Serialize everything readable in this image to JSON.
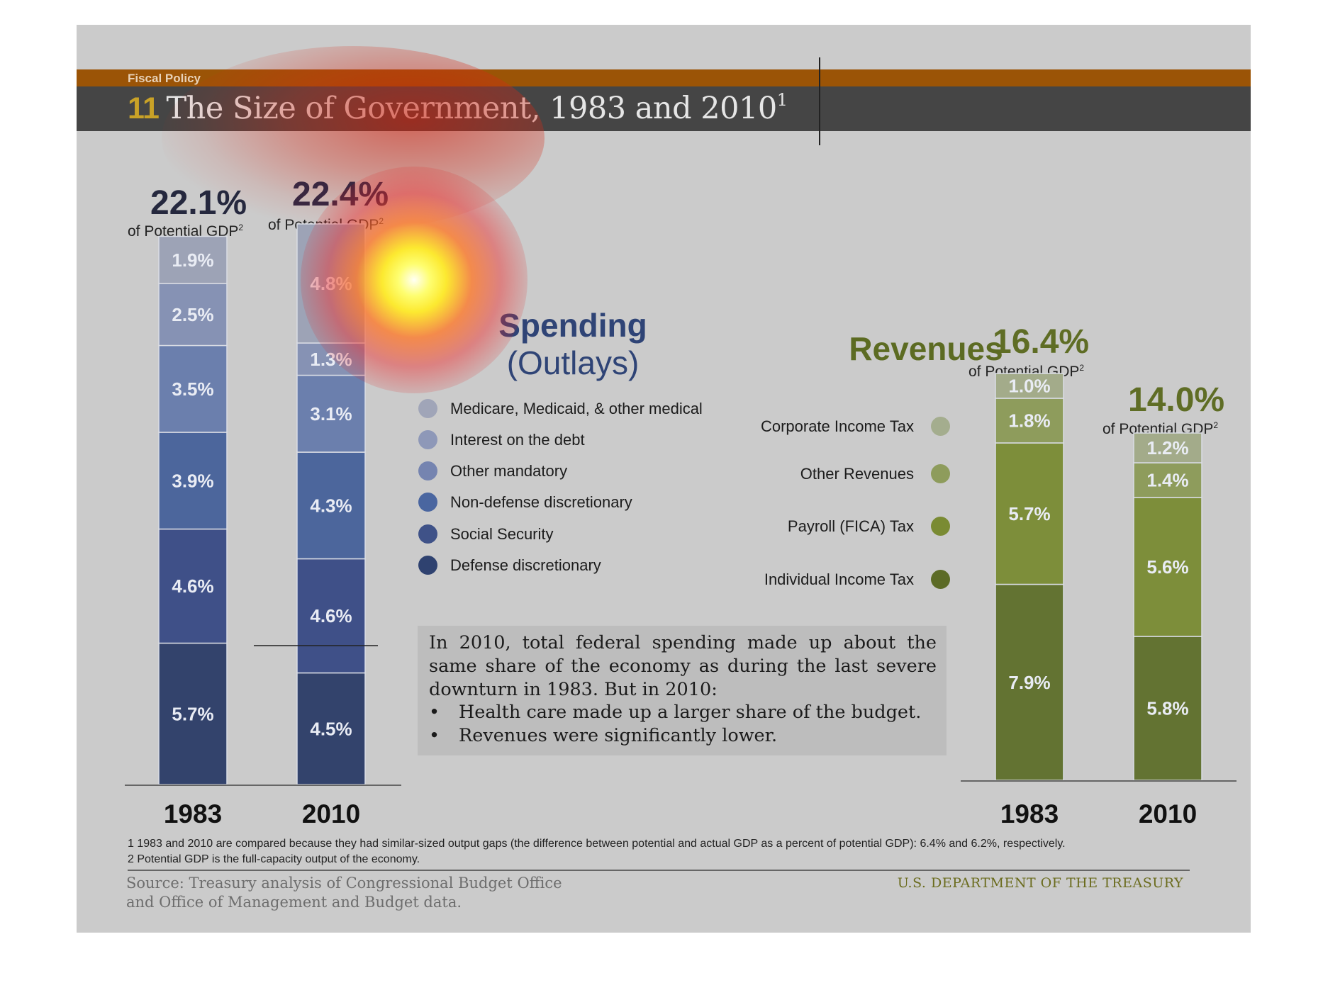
{
  "header": {
    "category": "Fiscal Policy",
    "number": "11",
    "title": "The Size of Government, 1983 and 2010",
    "title_footnote": "1"
  },
  "spending": {
    "heading_line1": "Spending",
    "heading_line2": "(Outlays)",
    "totals": [
      {
        "year": "1983",
        "value": "22.1%",
        "label": "of Potential GDP",
        "footnote": "2"
      },
      {
        "year": "2010",
        "value": "22.4%",
        "label": "of Potential GDP",
        "footnote": "2"
      }
    ],
    "legend": [
      {
        "label": "Medicare, Medicaid, & other medical",
        "color": "#a0a5b8"
      },
      {
        "label": "Interest on the debt",
        "color": "#8e98b8"
      },
      {
        "label": "Other mandatory",
        "color": "#7584b0"
      },
      {
        "label": "Non-defense discretionary",
        "color": "#4a66a0"
      },
      {
        "label": "Social Security",
        "color": "#3f5288"
      },
      {
        "label": "Defense discretionary",
        "color": "#2f4270"
      }
    ]
  },
  "revenues": {
    "heading": "Revenues",
    "totals": [
      {
        "year": "1983",
        "value": "16.4%",
        "label": "of Potential GDP",
        "footnote": "2"
      },
      {
        "year": "2010",
        "value": "14.0%",
        "label": "of Potential GDP",
        "footnote": "2"
      }
    ],
    "legend": [
      {
        "label": "Corporate Income Tax",
        "color": "#a4ad8e"
      },
      {
        "label": "Other Revenues",
        "color": "#8e9c5c"
      },
      {
        "label": "Payroll (FICA) Tax",
        "color": "#7a8b33"
      },
      {
        "label": "Individual Income Tax",
        "color": "#5c6b26"
      }
    ]
  },
  "note": {
    "paragraph": "In 2010, total federal spending made up about the same share of the economy as during the last severe downturn in 1983. But in 2010:",
    "bullets": [
      "Health care made up a larger share of the budget.",
      "Revenues were significantly lower."
    ],
    "bullet_char": "•"
  },
  "footnotes": [
    "1 1983 and 2010 are compared because they had similar-sized output gaps (the difference between potential and actual GDP as a percent of potential GDP): 6.4% and 6.2%, respectively.",
    "2 Potential GDP is the full-capacity output of the economy."
  ],
  "source_line1": "Source: Treasury analysis of Congressional Budget Office",
  "source_line2": "and Office of Management and Budget data.",
  "agency": "U.S. DEPARTMENT OF THE TREASURY",
  "chart_data": [
    {
      "type": "bar",
      "stacked": true,
      "title": "Spending (Outlays)",
      "unit": "% of Potential GDP",
      "categories": [
        "1983",
        "2010"
      ],
      "series": [
        {
          "name": "Defense discretionary",
          "values": [
            5.7,
            4.5
          ],
          "labels": [
            "5.7%",
            "4.5%"
          ],
          "color": "#33436c"
        },
        {
          "name": "Social Security",
          "values": [
            4.6,
            4.6
          ],
          "labels": [
            "4.6%",
            "4.6%"
          ],
          "color": "#3f5088"
        },
        {
          "name": "Non-defense discretionary",
          "values": [
            3.9,
            4.3
          ],
          "labels": [
            "3.9%",
            "4.3%"
          ],
          "color": "#4c669c"
        },
        {
          "name": "Other mandatory",
          "values": [
            3.5,
            3.1
          ],
          "labels": [
            "3.5%",
            "3.1%"
          ],
          "color": "#6b7fad"
        },
        {
          "name": "Interest on the debt",
          "values": [
            2.5,
            1.3
          ],
          "labels": [
            "2.5%",
            "1.3%"
          ],
          "color": "#8692b4"
        },
        {
          "name": "Medicare, Medicaid, & other medical",
          "values": [
            1.9,
            4.8
          ],
          "labels": [
            "1.9%",
            "4.8%"
          ],
          "color": "#9da3b6"
        }
      ],
      "totals": [
        22.1,
        22.4
      ]
    },
    {
      "type": "bar",
      "stacked": true,
      "title": "Revenues",
      "unit": "% of Potential GDP",
      "categories": [
        "1983",
        "2010"
      ],
      "series": [
        {
          "name": "Individual Income Tax",
          "values": [
            7.9,
            5.8
          ],
          "labels": [
            "7.9%",
            "5.8%"
          ],
          "color": "#637332"
        },
        {
          "name": "Payroll (FICA) Tax",
          "values": [
            5.7,
            5.6
          ],
          "labels": [
            "5.7%",
            "5.6%"
          ],
          "color": "#7d8e3a"
        },
        {
          "name": "Other Revenues",
          "values": [
            1.8,
            1.4
          ],
          "labels": [
            "1.8%",
            "1.4%"
          ],
          "color": "#8e9c5c"
        },
        {
          "name": "Corporate Income Tax",
          "values": [
            1.0,
            1.2
          ],
          "labels": [
            "1.0%",
            "1.2%"
          ],
          "color": "#a3ab8a"
        }
      ],
      "totals": [
        16.4,
        14.0
      ]
    }
  ]
}
